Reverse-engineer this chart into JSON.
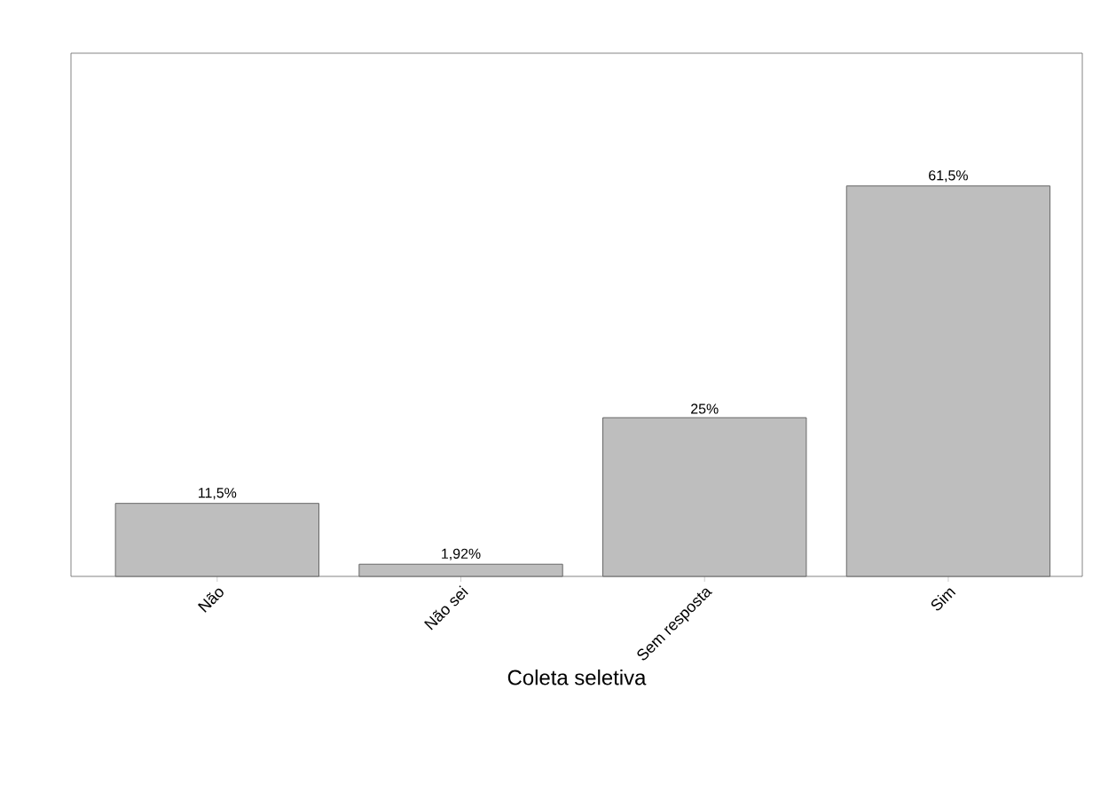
{
  "chart_data": {
    "type": "bar",
    "xlabel": "Coleta seletiva",
    "categories": [
      "Não",
      "Não sei",
      "Sem resposta",
      "Sim"
    ],
    "values": [
      11.5,
      1.92,
      25,
      61.5
    ],
    "value_labels": [
      "11,5%",
      "1,92%",
      "25%",
      "61,5%"
    ],
    "color": "#bebebe"
  }
}
